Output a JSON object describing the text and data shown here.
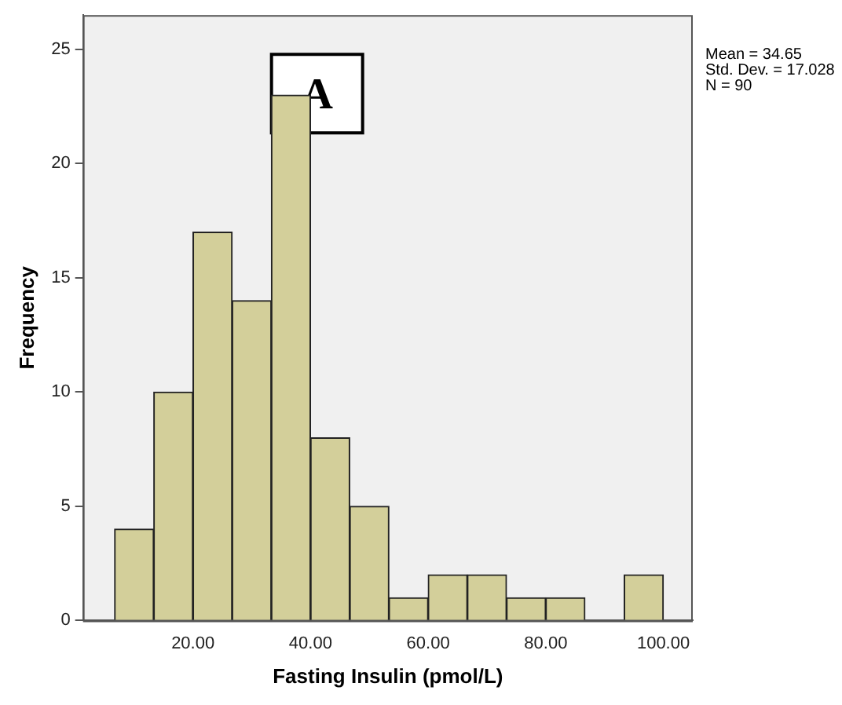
{
  "chart_data": {
    "type": "histogram",
    "xlabel": "Fasting Insulin (pmol/L)",
    "ylabel": "Frequency",
    "bins": [
      6.67,
      13.33,
      20,
      26.67,
      33.33,
      40,
      46.67,
      53.33,
      60,
      66.67,
      73.33,
      80,
      86.67,
      93.33,
      100
    ],
    "values": [
      4,
      10,
      17,
      14,
      23,
      8,
      5,
      1,
      2,
      2,
      1,
      1,
      0,
      2
    ],
    "color": "#d3cf9a",
    "xlim": [
      1.3,
      105
    ],
    "xticks": [
      {
        "value": 20,
        "label": "20.00"
      },
      {
        "value": 40,
        "label": "40.00"
      },
      {
        "value": 60,
        "label": "60.00"
      },
      {
        "value": 80,
        "label": "80.00"
      },
      {
        "value": 100,
        "label": "100.00"
      }
    ],
    "ylim": [
      0,
      26.5
    ],
    "yticks": [
      0,
      5,
      10,
      15,
      20,
      25
    ],
    "grid": false,
    "legend": false,
    "annotations": [
      "A",
      "Mean = 34.65\nStd. Dev. = 17.028\nN = 90"
    ]
  }
}
